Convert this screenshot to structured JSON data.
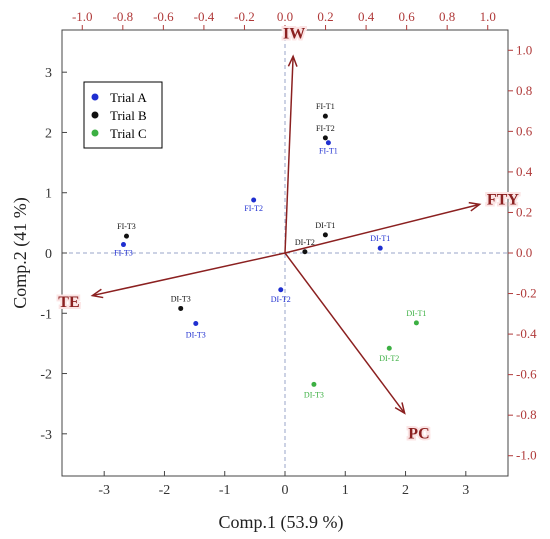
{
  "chart_data": {
    "type": "scatter",
    "title": "",
    "xlabel": "Comp.1 (53.9 %)",
    "ylabel": "Comp.2 (41 %)",
    "xlim": [
      -3.7,
      3.7
    ],
    "ylim": [
      -3.7,
      3.7
    ],
    "loadings_lim": [
      -1.1,
      1.1
    ],
    "x_ticks": [
      "-3",
      "-2",
      "-1",
      "0",
      "1",
      "2",
      "3"
    ],
    "y_ticks": [
      "-3",
      "-2",
      "-1",
      "0",
      "1",
      "2",
      "3"
    ],
    "top_ticks": [
      "-1.0",
      "-0.8",
      "-0.6",
      "-0.4",
      "-0.2",
      "0.0",
      "0.2",
      "0.4",
      "0.6",
      "0.8",
      "1.0"
    ],
    "right_ticks": [
      "1.0",
      "0.8",
      "0.6",
      "0.4",
      "0.2",
      "0.0",
      "-0.2",
      "-0.4",
      "-0.6",
      "-0.8",
      "-1.0"
    ],
    "grid": false,
    "reference_lines": "dashed at x=0 and y=0",
    "legend_position": "top-left",
    "series": [
      {
        "name": "Trial A",
        "color": "#1f2fd0",
        "points": [
          {
            "label": "FI-T1",
            "x": 0.72,
            "y": 1.83
          },
          {
            "label": "FI-T2",
            "x": -0.52,
            "y": 0.88
          },
          {
            "label": "FI-T3",
            "x": -2.68,
            "y": 0.14
          },
          {
            "label": "DI-T1",
            "x": 1.58,
            "y": 0.08
          },
          {
            "label": "DI-T2",
            "x": -0.07,
            "y": -0.61
          },
          {
            "label": "DI-T3",
            "x": -1.48,
            "y": -1.17
          }
        ]
      },
      {
        "name": "Trial B",
        "color": "#111111",
        "points": [
          {
            "label": "FI-T1",
            "x": 0.67,
            "y": 2.27
          },
          {
            "label": "FI-T2",
            "x": 0.67,
            "y": 1.91
          },
          {
            "label": "FI-T3",
            "x": -2.63,
            "y": 0.28
          },
          {
            "label": "DI-T1",
            "x": 0.67,
            "y": 0.3
          },
          {
            "label": "DI-T2",
            "x": 0.33,
            "y": 0.02
          },
          {
            "label": "DI-T3",
            "x": -1.73,
            "y": -0.92
          }
        ]
      },
      {
        "name": "Trial C",
        "color": "#3cb043",
        "points": [
          {
            "label": "DI-T1",
            "x": 2.18,
            "y": -1.16
          },
          {
            "label": "DI-T2",
            "x": 1.73,
            "y": -1.58
          },
          {
            "label": "DI-T3",
            "x": 0.48,
            "y": -2.18
          }
        ]
      }
    ],
    "loadings": [
      {
        "name": "IW",
        "x": 0.04,
        "y": 0.97
      },
      {
        "name": "FTY",
        "x": 0.96,
        "y": 0.24
      },
      {
        "name": "TE",
        "x": -0.95,
        "y": -0.21
      },
      {
        "name": "PC",
        "x": 0.59,
        "y": -0.79
      }
    ]
  }
}
